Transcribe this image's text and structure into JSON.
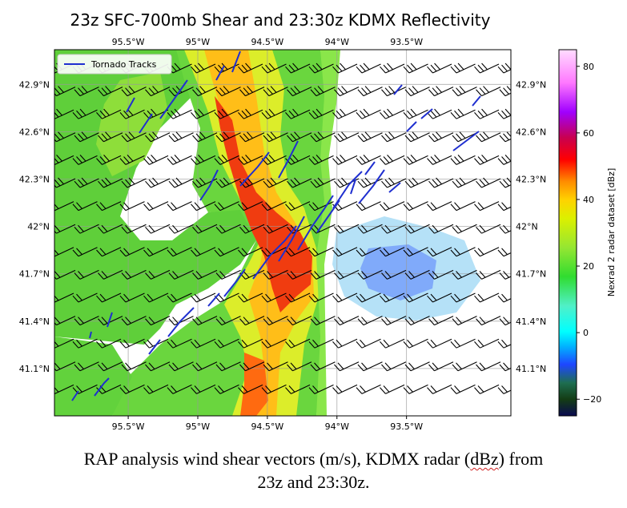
{
  "title": "23z SFC-700mb Shear and 23:30z KDMX Reflectivity",
  "legend": {
    "entries": [
      {
        "label": "Tornado Tracks",
        "color": "#1f2fd0"
      }
    ]
  },
  "map": {
    "lon_ticks": [
      {
        "value": -95.5,
        "label": "95.5°W"
      },
      {
        "value": -95.0,
        "label": "95°W"
      },
      {
        "value": -94.5,
        "label": "94.5°W"
      },
      {
        "value": -94.0,
        "label": "94°W"
      },
      {
        "value": -93.5,
        "label": "93.5°W"
      }
    ],
    "lat_ticks": [
      {
        "value": 42.9,
        "label": "42.9°N"
      },
      {
        "value": 42.6,
        "label": "42.6°N"
      },
      {
        "value": 42.3,
        "label": "42.3°N"
      },
      {
        "value": 42.0,
        "label": "42°N"
      },
      {
        "value": 41.7,
        "label": "41.7°N"
      },
      {
        "value": 41.4,
        "label": "41.4°N"
      },
      {
        "value": 41.1,
        "label": "41.1°N"
      }
    ],
    "lon_range": [
      -96.03,
      -92.75
    ],
    "lat_range": [
      40.8,
      43.12
    ],
    "barb_direction_deg": 245
  },
  "colorbar": {
    "label": "Nexrad 2 radar dataset [dBz]",
    "range": [
      -25,
      85
    ],
    "ticks": [
      {
        "value": 80,
        "label": "80"
      },
      {
        "value": 60,
        "label": "60"
      },
      {
        "value": 40,
        "label": "40"
      },
      {
        "value": 20,
        "label": "20"
      },
      {
        "value": 0,
        "label": "0"
      },
      {
        "value": -20,
        "label": "−20"
      }
    ]
  },
  "caption": {
    "line1_a": "RAP analysis wind shear vectors (m/s), KDMX radar (",
    "line1_b": "dBz",
    "line1_c": ") from",
    "line2": "23z and 23:30z."
  }
}
